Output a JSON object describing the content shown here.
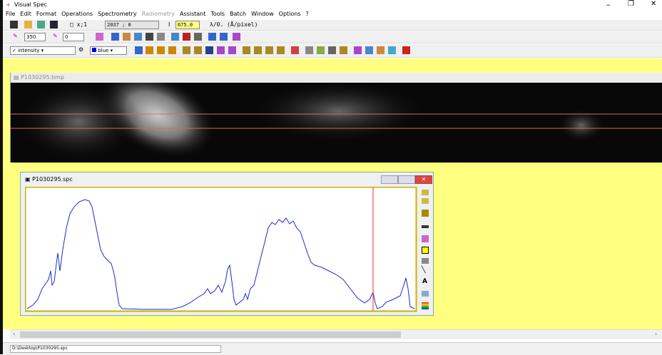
{
  "window": {
    "title": "Visual Spec"
  },
  "menu": [
    "File",
    "Edit",
    "Format",
    "Operations",
    "Spectrometry",
    "Radiometry",
    "Assistant",
    "Tools",
    "Batch",
    "Window",
    "Options",
    "?"
  ],
  "toolbar1": {
    "coord_label": "x;1",
    "coord_value": "2037 ; 0",
    "intensity_label": "I",
    "intensity_value": "675.0",
    "dispersion": "λ/0. (Å/pixel)"
  },
  "toolbar2": {
    "field1": "350",
    "field2": "0"
  },
  "toolbar3": {
    "mode": "intensity",
    "color": "blue"
  },
  "image_window": {
    "title": "P1030295.bmp"
  },
  "spectrum_window": {
    "title": "P1030295.spc"
  },
  "status": {
    "path": "D:\\Desktop\\P1030295.spc"
  }
}
